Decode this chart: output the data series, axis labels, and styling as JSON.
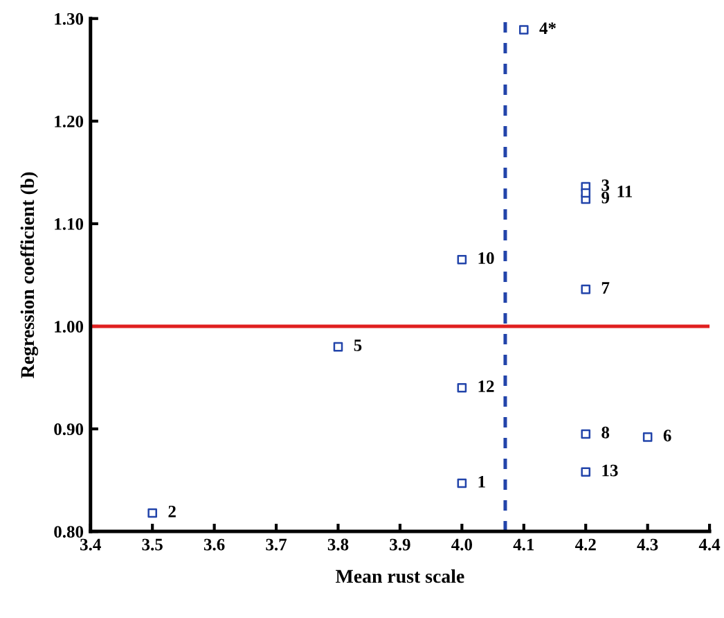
{
  "chart_data": {
    "type": "scatter",
    "xlabel": "Mean rust scale",
    "ylabel": "Regression coefficient (b)",
    "x": [
      4.0,
      3.5,
      4.2,
      4.1,
      3.8,
      4.3,
      4.2,
      4.2,
      4.2,
      4.0,
      4.2,
      4.0,
      4.2
    ],
    "series": [
      {
        "color": "#2244aa",
        "values": [
          0.847,
          0.818,
          1.136,
          1.289,
          0.98,
          0.892,
          1.036,
          0.895,
          1.124,
          1.065,
          1.13,
          0.94,
          0.858
        ]
      }
    ],
    "annotations": [
      {
        "text": "1",
        "x": 4.0,
        "y": 0.847
      },
      {
        "text": "2",
        "x": 3.5,
        "y": 0.818
      },
      {
        "text": "3",
        "x": 4.2,
        "y": 1.136
      },
      {
        "text": "4*",
        "x": 4.1,
        "y": 1.289
      },
      {
        "text": "5",
        "x": 3.8,
        "y": 0.98
      },
      {
        "text": "6",
        "x": 4.3,
        "y": 0.892
      },
      {
        "text": "7",
        "x": 4.2,
        "y": 1.036
      },
      {
        "text": "8",
        "x": 4.2,
        "y": 0.895
      },
      {
        "text": "9",
        "x": 4.2,
        "y": 1.124
      },
      {
        "text": "10",
        "x": 4.0,
        "y": 1.065
      },
      {
        "text": "11",
        "x": 4.2,
        "y": 1.13
      },
      {
        "text": "12",
        "x": 4.0,
        "y": 0.94
      },
      {
        "text": "13",
        "x": 4.2,
        "y": 0.858
      }
    ],
    "ref_lines": [
      {
        "axis": "y",
        "value": 1.0,
        "color": "#e02020",
        "line_style": "solid"
      },
      {
        "axis": "x",
        "value": 4.07,
        "color": "#2244aa",
        "line_style": "dashed"
      }
    ],
    "xlim": [
      3.4,
      4.4
    ],
    "ylim": [
      0.8,
      1.3
    ],
    "xticks": [
      {
        "value": 3.4,
        "label": "3.4"
      },
      {
        "value": 3.5,
        "label": "3.5"
      },
      {
        "value": 3.6,
        "label": "3.6"
      },
      {
        "value": 3.7,
        "label": "3.7"
      },
      {
        "value": 3.8,
        "label": "3.8"
      },
      {
        "value": 3.9,
        "label": "3.9"
      },
      {
        "value": 4.0,
        "label": "4.0"
      },
      {
        "value": 4.1,
        "label": "4.1"
      },
      {
        "value": 4.2,
        "label": "4.2"
      },
      {
        "value": 4.3,
        "label": "4.3"
      },
      {
        "value": 4.4,
        "label": "4.4"
      }
    ],
    "yticks": [
      {
        "value": 0.8,
        "label": "0.80"
      },
      {
        "value": 0.9,
        "label": "0.90"
      },
      {
        "value": 1.0,
        "label": "1.00"
      },
      {
        "value": 1.1,
        "label": "1.10"
      },
      {
        "value": 1.2,
        "label": "1.20"
      },
      {
        "value": 1.3,
        "label": "1.30"
      }
    ],
    "marker": "square",
    "grid": false,
    "legend": false
  }
}
